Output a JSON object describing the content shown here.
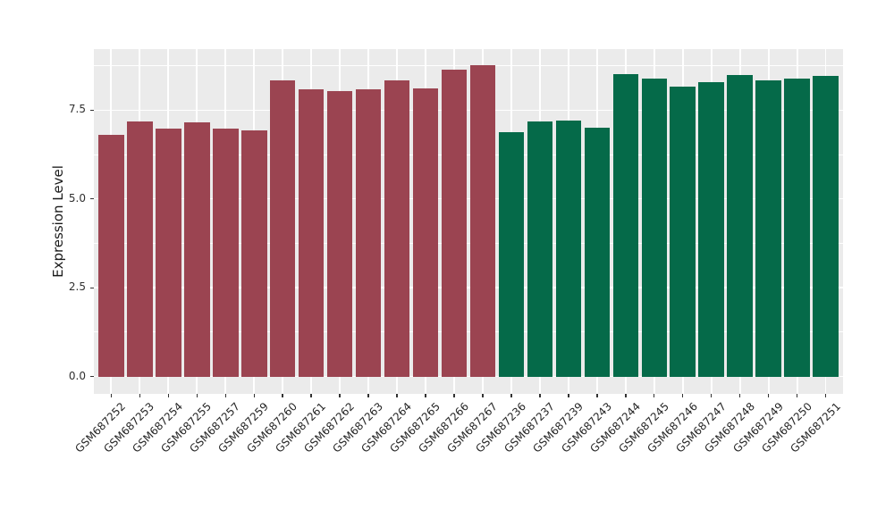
{
  "figure": {
    "background": "#FFFFFF"
  },
  "chart_data": {
    "type": "bar",
    "title": "",
    "xlabel": "",
    "ylabel": "Expression Level",
    "ylim": [
      -0.49,
      9.22
    ],
    "yticks": [
      0,
      2.5,
      5,
      7.5
    ],
    "ytick_labels": [
      "0.0",
      "2.5",
      "5.0",
      "7.5"
    ],
    "minor_gridlines": [
      1.25,
      3.75,
      6.25,
      8.75
    ],
    "grid": "on",
    "legend": "none",
    "panel_background": "#EBEBEB",
    "gridline_color": "#FFFFFF",
    "axis_text_color": "#262626",
    "group_colors": [
      "#9B4451",
      "#056A49"
    ],
    "bars": [
      {
        "label": "GSM687252",
        "value": 6.8,
        "group": 0
      },
      {
        "label": "GSM687253",
        "value": 7.18,
        "group": 0
      },
      {
        "label": "GSM687254",
        "value": 6.97,
        "group": 0
      },
      {
        "label": "GSM687255",
        "value": 7.16,
        "group": 0
      },
      {
        "label": "GSM687257",
        "value": 6.97,
        "group": 0
      },
      {
        "label": "GSM687259",
        "value": 6.92,
        "group": 0
      },
      {
        "label": "GSM687260",
        "value": 8.35,
        "group": 0
      },
      {
        "label": "GSM687261",
        "value": 8.09,
        "group": 0
      },
      {
        "label": "GSM687262",
        "value": 8.03,
        "group": 0
      },
      {
        "label": "GSM687263",
        "value": 8.09,
        "group": 0
      },
      {
        "label": "GSM687264",
        "value": 8.35,
        "group": 0
      },
      {
        "label": "GSM687265",
        "value": 8.11,
        "group": 0
      },
      {
        "label": "GSM687266",
        "value": 8.63,
        "group": 0
      },
      {
        "label": "GSM687267",
        "value": 8.76,
        "group": 0
      },
      {
        "label": "GSM687236",
        "value": 6.87,
        "group": 1
      },
      {
        "label": "GSM687237",
        "value": 7.19,
        "group": 1
      },
      {
        "label": "GSM687239",
        "value": 7.21,
        "group": 1
      },
      {
        "label": "GSM687243",
        "value": 7.0,
        "group": 1
      },
      {
        "label": "GSM687244",
        "value": 8.51,
        "group": 1
      },
      {
        "label": "GSM687245",
        "value": 8.38,
        "group": 1
      },
      {
        "label": "GSM687246",
        "value": 8.17,
        "group": 1
      },
      {
        "label": "GSM687247",
        "value": 8.28,
        "group": 1
      },
      {
        "label": "GSM687248",
        "value": 8.49,
        "group": 1
      },
      {
        "label": "GSM687249",
        "value": 8.33,
        "group": 1
      },
      {
        "label": "GSM687250",
        "value": 8.39,
        "group": 1
      },
      {
        "label": "GSM687251",
        "value": 8.46,
        "group": 1
      }
    ]
  }
}
